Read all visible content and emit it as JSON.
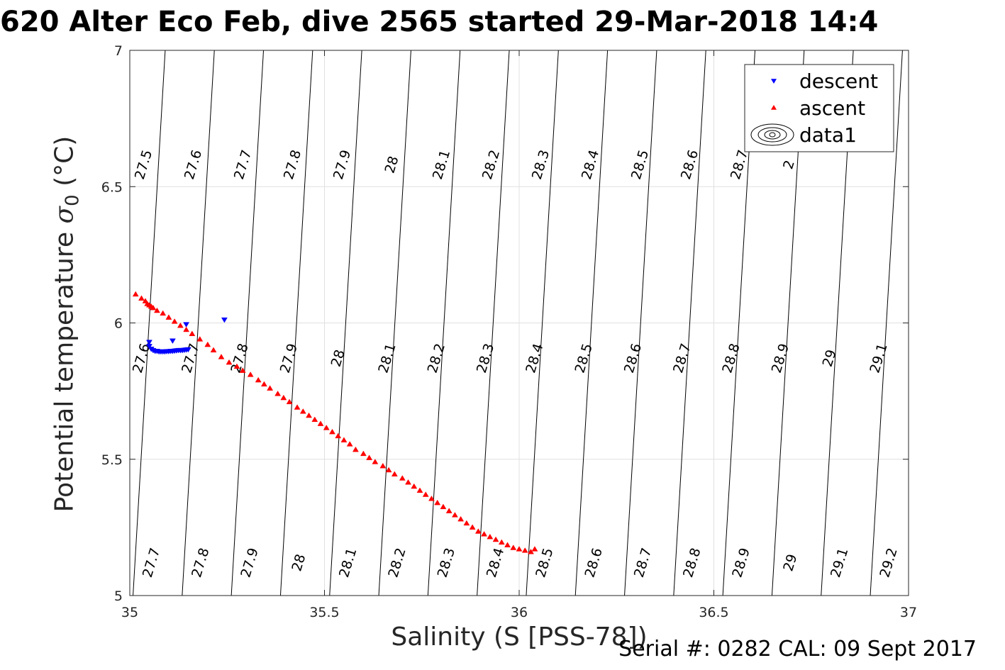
{
  "title": "620 Alter Eco Feb, dive 2565 started 29-Mar-2018 14:4",
  "footer": "Serial #: 0282  CAL: 09 Sept 2017",
  "chart_data": {
    "type": "scatter",
    "title": "620 Alter Eco Feb, dive 2565 started 29-Mar-2018 14:4",
    "xlabel": "Salinity (S [PSS-78])",
    "ylabel": "Potential temperature σ0 (°C)",
    "ylabel_parts": {
      "text": "Potential temperature ",
      "sigma": "σ",
      "sub": "0",
      "unit": " (°C)"
    },
    "xlim": [
      35,
      37
    ],
    "ylim": [
      5,
      7
    ],
    "xticks": [
      "35",
      "35.5",
      "36",
      "36.5",
      "37"
    ],
    "yticks": [
      "5",
      "5.5",
      "6",
      "6.5",
      "7"
    ],
    "grid": true,
    "legend_position": "top-right",
    "legend": [
      "descent",
      "ascent",
      "data1"
    ],
    "colors": {
      "descent": "#0000ff",
      "ascent": "#ff0000",
      "contour": "#000000",
      "grid": "#e0e0e0"
    },
    "series": [
      {
        "name": "descent",
        "marker": "triangle-down",
        "x": [
          35.05,
          35.05,
          35.055,
          35.06,
          35.065,
          35.07,
          35.075,
          35.08,
          35.085,
          35.09,
          35.095,
          35.1,
          35.105,
          35.11,
          35.115,
          35.12,
          35.125,
          35.13,
          35.135,
          35.14,
          35.145,
          35.15,
          35.11,
          35.145,
          35.243
        ],
        "y": [
          5.93,
          5.915,
          5.905,
          5.9,
          5.897,
          5.897,
          5.895,
          5.895,
          5.895,
          5.895,
          5.896,
          5.896,
          5.897,
          5.897,
          5.898,
          5.899,
          5.9,
          5.9,
          5.9,
          5.901,
          5.902,
          5.903,
          5.935,
          5.995,
          6.012
        ]
      },
      {
        "name": "ascent",
        "marker": "triangle-up",
        "x": [
          35.015,
          35.03,
          35.04,
          35.045,
          35.05,
          35.055,
          35.06,
          35.07,
          35.085,
          35.1,
          35.115,
          35.13,
          35.145,
          35.16,
          35.18,
          35.2,
          35.215,
          35.235,
          35.255,
          35.275,
          35.29,
          35.31,
          35.33,
          35.345,
          35.36,
          35.38,
          35.395,
          35.41,
          35.43,
          35.445,
          35.46,
          35.475,
          35.49,
          35.505,
          35.52,
          35.535,
          35.55,
          35.565,
          35.58,
          35.6,
          35.615,
          35.63,
          35.65,
          35.665,
          35.68,
          35.7,
          35.715,
          35.73,
          35.745,
          35.76,
          35.775,
          35.79,
          35.805,
          35.82,
          35.835,
          35.85,
          35.865,
          35.88,
          35.895,
          35.91,
          35.925,
          35.94,
          35.955,
          35.97,
          35.985,
          36.0,
          36.015,
          36.03,
          36.04
        ],
        "y": [
          6.105,
          6.09,
          6.08,
          6.07,
          6.065,
          6.06,
          6.055,
          6.045,
          6.035,
          6.02,
          6.005,
          5.99,
          5.975,
          5.96,
          5.94,
          5.92,
          5.9,
          5.875,
          5.855,
          5.84,
          5.825,
          5.81,
          5.79,
          5.775,
          5.76,
          5.74,
          5.725,
          5.71,
          5.69,
          5.675,
          5.66,
          5.645,
          5.63,
          5.615,
          5.6,
          5.585,
          5.57,
          5.555,
          5.535,
          5.52,
          5.505,
          5.49,
          5.475,
          5.46,
          5.445,
          5.43,
          5.415,
          5.4,
          5.385,
          5.37,
          5.355,
          5.34,
          5.325,
          5.31,
          5.295,
          5.28,
          5.265,
          5.25,
          5.235,
          5.225,
          5.215,
          5.205,
          5.195,
          5.185,
          5.175,
          5.17,
          5.165,
          5.16,
          5.17
        ]
      }
    ],
    "contours": {
      "name": "data1",
      "levels": [
        27.5,
        27.6,
        27.7,
        27.8,
        27.9,
        28,
        28.1,
        28.2,
        28.3,
        28.4,
        28.5,
        28.6,
        28.7,
        28.8,
        28.9,
        29,
        29.1,
        29.2
      ],
      "label_rows": [
        {
          "y": 6.58,
          "labels": [
            "27.5",
            "27.6",
            "27.7",
            "27.8",
            "27.9",
            "28",
            "28.1",
            "28.2",
            "28.3",
            "28.4",
            "28.5",
            "28.6",
            "28.7",
            "2"
          ]
        },
        {
          "y": 5.87,
          "labels": [
            "27.6",
            "27.7",
            "27.8",
            "27.9",
            "28",
            "28.1",
            "28.2",
            "28.3",
            "28.4",
            "28.5",
            "28.6",
            "28.7",
            "28.8",
            "28.9",
            "29",
            "29.1"
          ]
        },
        {
          "y": 5.12,
          "labels": [
            "27.7",
            "27.8",
            "27.9",
            "28",
            "28.1",
            "28.2",
            "28.3",
            "28.4",
            "28.5",
            "28.6",
            "28.7",
            "28.8",
            "28.9",
            "29",
            "29.1",
            "29.2"
          ]
        }
      ]
    }
  }
}
